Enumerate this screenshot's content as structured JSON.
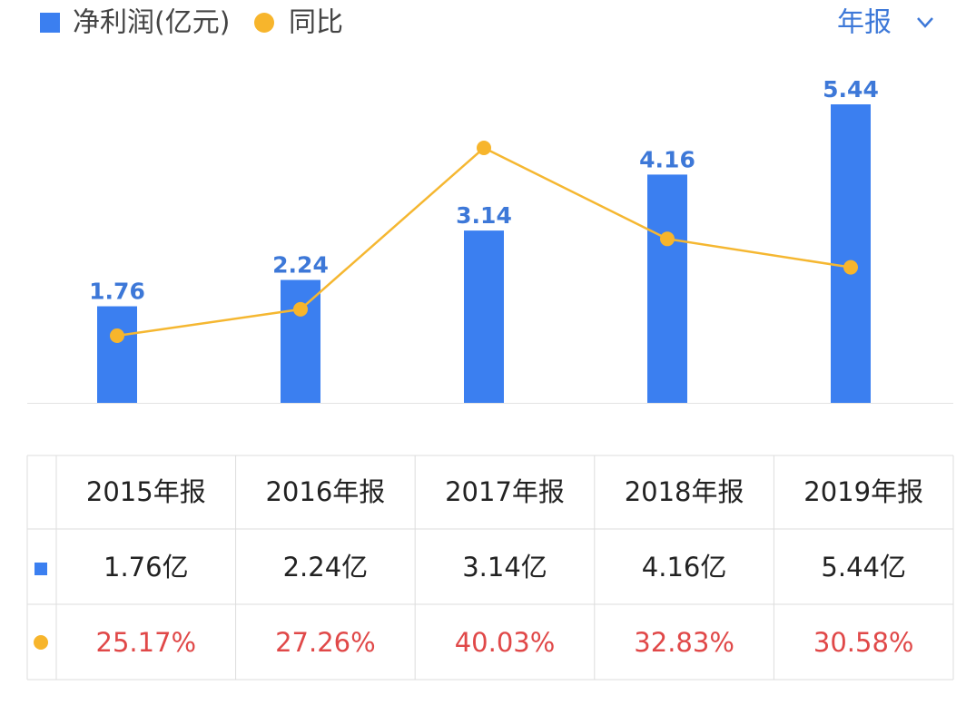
{
  "chart_data": {
    "type": "bar-line",
    "categories": [
      "2015年报",
      "2016年报",
      "2017年报",
      "2018年报",
      "2019年报"
    ],
    "period": "年报",
    "series": [
      {
        "name": "净利润(亿元)",
        "type": "bar",
        "color": "#3b7ff0",
        "label_color": "#3d78d8",
        "values": [
          1.76,
          2.24,
          3.14,
          4.16,
          5.44
        ],
        "value_labels": [
          "1.76亿",
          "2.24亿",
          "3.14亿",
          "4.16亿",
          "5.44亿"
        ]
      },
      {
        "name": "同比",
        "type": "line",
        "color": "#f5b731",
        "label_color": "#e04848",
        "values": [
          25.17,
          27.26,
          40.03,
          32.83,
          30.58
        ],
        "value_labels": [
          "25.17%",
          "27.26%",
          "40.03%",
          "32.83%",
          "30.58%"
        ]
      }
    ]
  }
}
